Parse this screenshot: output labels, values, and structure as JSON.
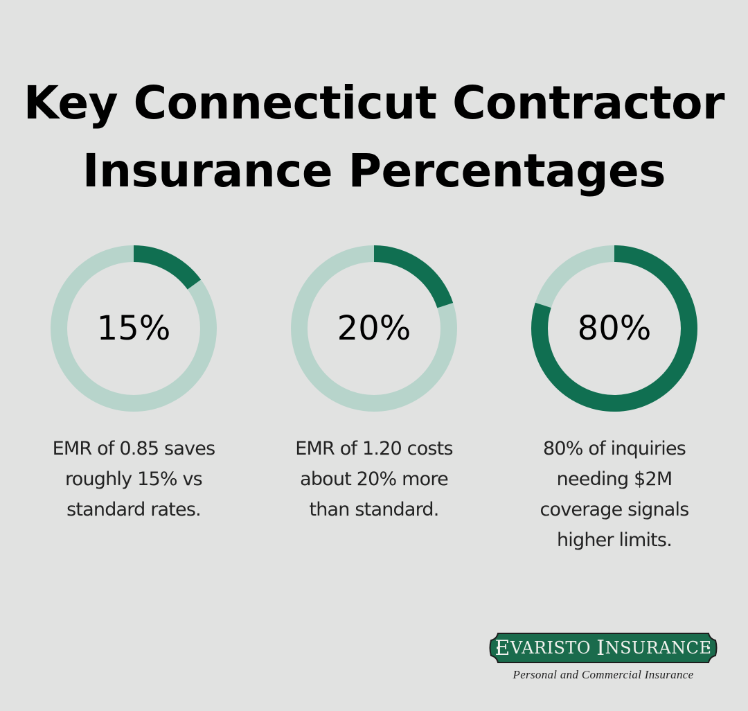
{
  "title": {
    "line1": "Key Connecticut Contractor",
    "line2": "Insurance Percentages"
  },
  "colors": {
    "background": "#e1e2e1",
    "ring_filled": "#106f51",
    "ring_track": "#b7d4cb",
    "logo_green": "#1a6b4c"
  },
  "cards": [
    {
      "percent_label": "15%",
      "value": 15,
      "desc_lines": [
        "EMR of 0.85 saves",
        "roughly 15% vs",
        "standard rates."
      ]
    },
    {
      "percent_label": "20%",
      "value": 20,
      "desc_lines": [
        "EMR of 1.20 costs",
        "about 20% more",
        "than standard."
      ]
    },
    {
      "percent_label": "80%",
      "value": 80,
      "desc_lines": [
        "80% of inquiries",
        "needing $2M",
        "coverage signals",
        "higher limits."
      ]
    }
  ],
  "logo": {
    "name_first_initial": "E",
    "name_first_rest": "VARISTO",
    "name_second_initial": "I",
    "name_second_rest": "NSURANCE",
    "tagline": "Personal and Commercial Insurance"
  },
  "chart_data": {
    "type": "pie",
    "subtype": "donut-progress",
    "title": "Key Connecticut Contractor Insurance Percentages",
    "categories": [
      "EMR of 0.85 saves roughly 15% vs standard rates.",
      "EMR of 1.20 costs about 20% more than standard.",
      "80% of inquiries needing $2M coverage signals higher limits."
    ],
    "values": [
      15,
      20,
      80
    ],
    "max": 100,
    "labels": [
      "15%",
      "20%",
      "80%"
    ]
  }
}
